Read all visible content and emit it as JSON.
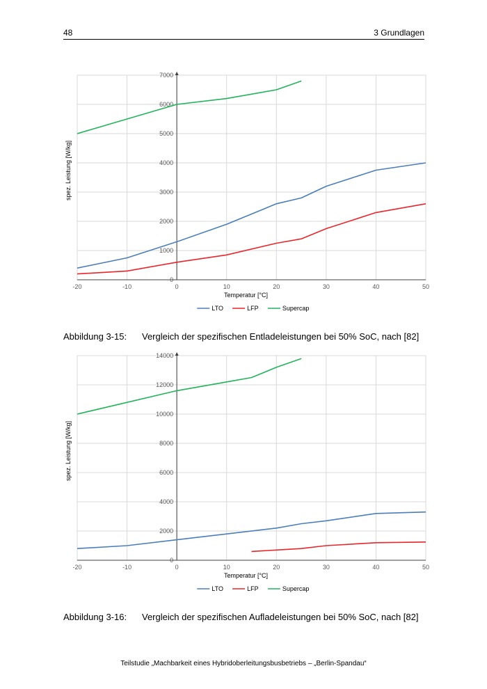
{
  "header": {
    "page_number": "48",
    "chapter": "3 Grundlagen"
  },
  "charts": [
    {
      "caption_label": "Abbildung 3-15:",
      "caption_text": "Vergleich der spezifischen Entladeleistungen bei 50% SoC, nach [82]"
    },
    {
      "caption_label": "Abbildung 3-16:",
      "caption_text": "Vergleich der spezifischen Aufladeleistungen bei 50% SoC, nach [82]"
    }
  ],
  "footer": {
    "text": "Teilstudie „Machbarkeit eines Hybridoberleitungsbusbetriebs – „Berlin-Spandau“"
  },
  "chart_data": [
    {
      "type": "line",
      "title": "",
      "xlabel": "Temperatur [°C]",
      "ylabel": "spez. Leistung [W/kg]",
      "xlim": [
        -20,
        50
      ],
      "ylim": [
        0,
        7000
      ],
      "xticks": [
        -20,
        -10,
        0,
        10,
        20,
        30,
        40,
        50
      ],
      "yticks": [
        0,
        1000,
        2000,
        3000,
        4000,
        5000,
        6000,
        7000
      ],
      "grid": true,
      "legend": "bottom",
      "series": [
        {
          "name": "LTO",
          "color": "#4a7ebb",
          "x": [
            -20,
            -10,
            0,
            10,
            20,
            25,
            30,
            40,
            50
          ],
          "y": [
            400,
            750,
            1300,
            1900,
            2600,
            2800,
            3200,
            3750,
            4000
          ]
        },
        {
          "name": "LFP",
          "color": "#e8262b",
          "x": [
            -20,
            -10,
            0,
            10,
            20,
            25,
            30,
            40,
            50
          ],
          "y": [
            200,
            300,
            600,
            850,
            1250,
            1400,
            1750,
            2300,
            2600
          ]
        },
        {
          "name": "Supercap",
          "color": "#22b35a",
          "x": [
            -20,
            0,
            10,
            20,
            25
          ],
          "y": [
            5000,
            6000,
            6200,
            6500,
            6800
          ]
        }
      ]
    },
    {
      "type": "line",
      "title": "",
      "xlabel": "Temperatur [°C]",
      "ylabel": "spez. Leistung [W/kg]",
      "xlim": [
        -20,
        50
      ],
      "ylim": [
        0,
        14000
      ],
      "xticks": [
        -20,
        -10,
        0,
        10,
        20,
        30,
        40,
        50
      ],
      "yticks": [
        0,
        2000,
        4000,
        6000,
        8000,
        10000,
        12000,
        14000
      ],
      "grid": true,
      "legend": "bottom",
      "series": [
        {
          "name": "LTO",
          "color": "#4a7ebb",
          "x": [
            -20,
            -10,
            0,
            10,
            20,
            25,
            30,
            40,
            50
          ],
          "y": [
            800,
            1000,
            1400,
            1800,
            2200,
            2500,
            2700,
            3200,
            3300
          ]
        },
        {
          "name": "LFP",
          "color": "#e8262b",
          "x": [
            15,
            20,
            25,
            30,
            40,
            50
          ],
          "y": [
            600,
            700,
            800,
            1000,
            1200,
            1250
          ]
        },
        {
          "name": "Supercap",
          "color": "#22b35a",
          "x": [
            -20,
            0,
            10,
            15,
            20,
            25
          ],
          "y": [
            10000,
            11600,
            12200,
            12500,
            13200,
            13800
          ]
        }
      ]
    }
  ]
}
